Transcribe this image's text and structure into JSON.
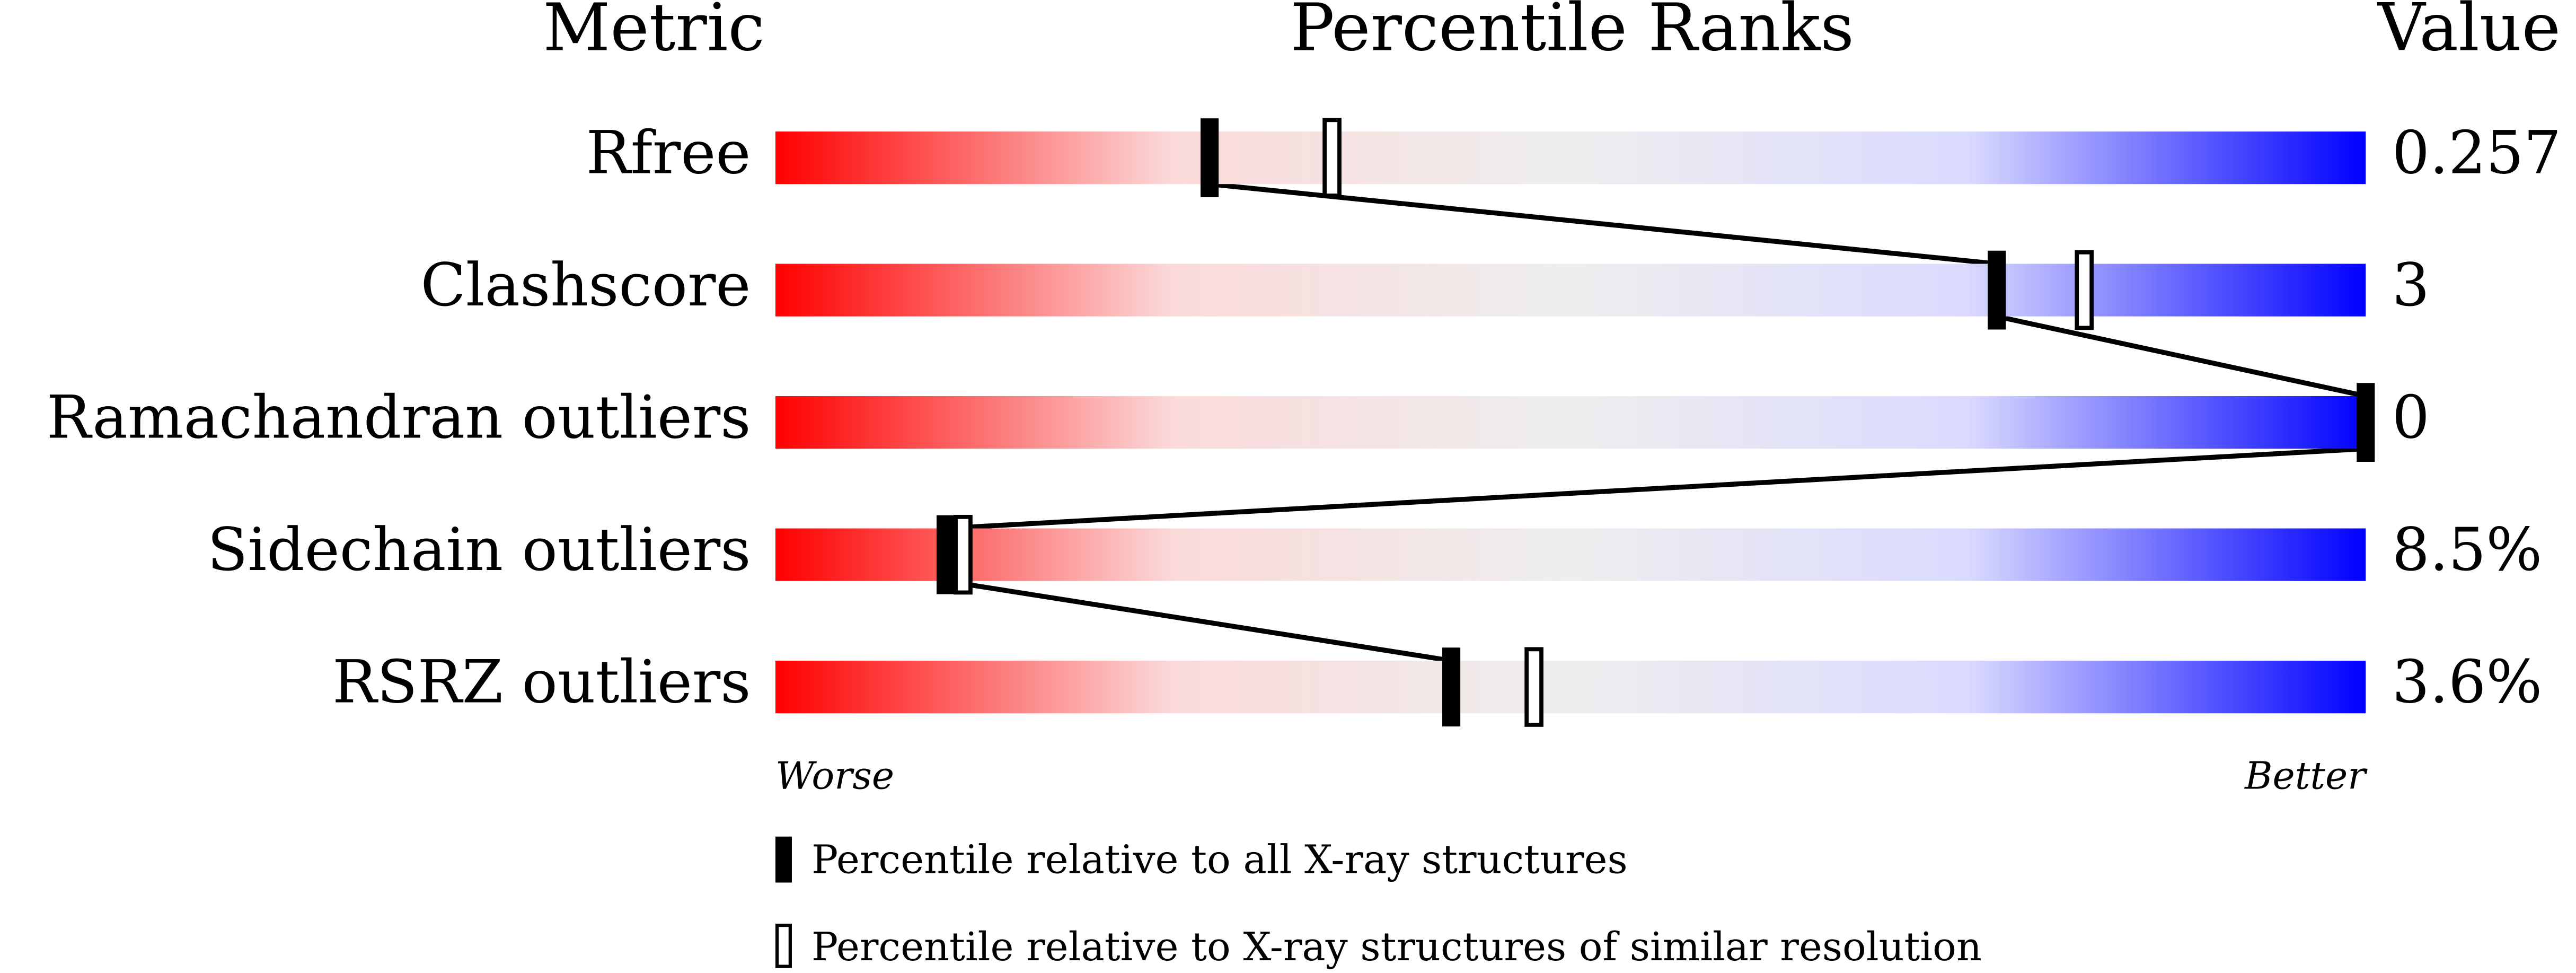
{
  "chart_data": {
    "type": "percentile-slider",
    "headers": {
      "metric": "Metric",
      "ranks": "Percentile Ranks",
      "value": "Value"
    },
    "xlim": [
      0,
      100
    ],
    "axis_labels": {
      "low": "Worse",
      "high": "Better"
    },
    "metrics": [
      {
        "name": "Rfree",
        "all": 27.3,
        "similar": 35.0,
        "value": "0.257"
      },
      {
        "name": "Clashscore",
        "all": 76.8,
        "similar": 82.3,
        "value": "3"
      },
      {
        "name": "Ramachandran outliers",
        "all": 100,
        "similar": null,
        "value": "0"
      },
      {
        "name": "Sidechain outliers",
        "all": 10.7,
        "similar": 11.8,
        "value": "8.5%"
      },
      {
        "name": "RSRZ outliers",
        "all": 42.5,
        "similar": 47.7,
        "value": "3.6%"
      }
    ],
    "legend": {
      "all": "Percentile relative to all X-ray structures",
      "similar": "Percentile relative to X-ray structures of similar resolution"
    },
    "gradient": [
      "#ff0000",
      "#fbdada",
      "#eeeeee",
      "#dadaff",
      "#0000ff"
    ]
  }
}
